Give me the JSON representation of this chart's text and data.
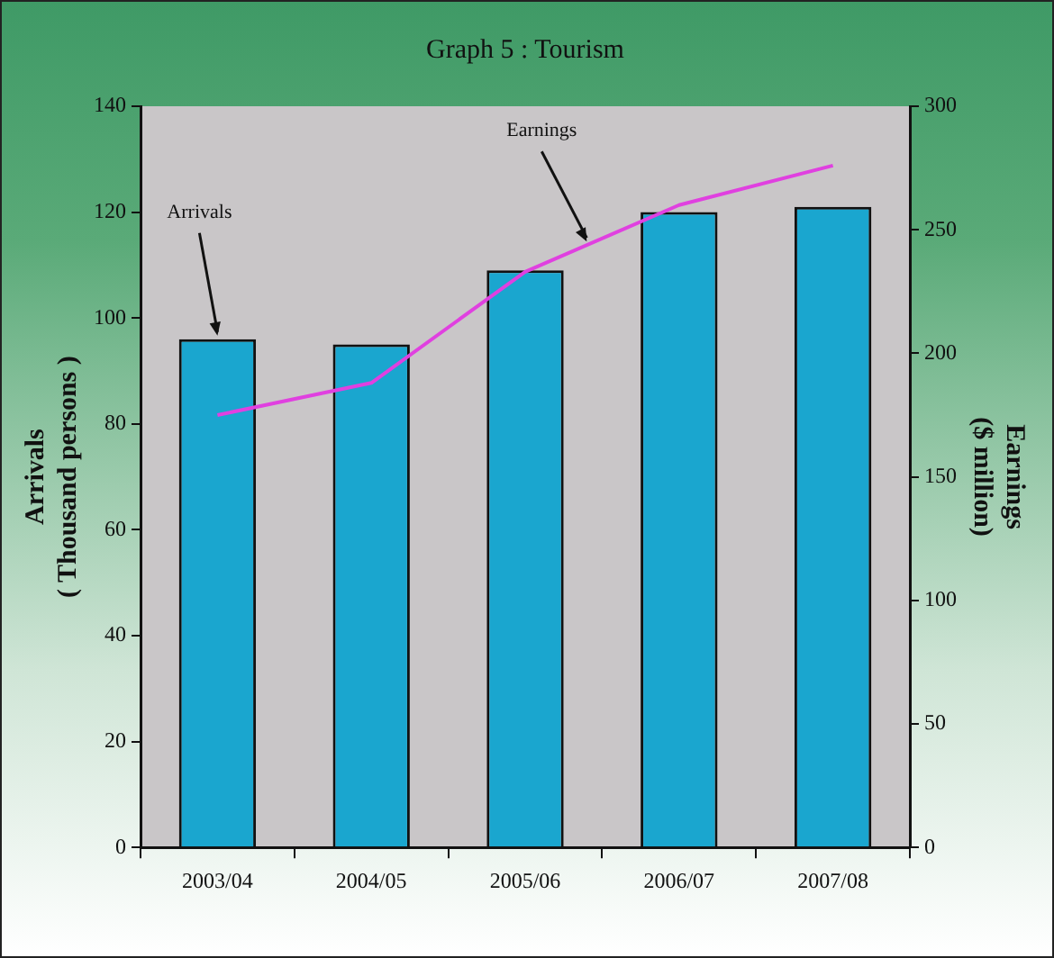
{
  "chart_data": {
    "type": "bar",
    "title": "Graph 5 : Tourism",
    "ylabel": "Arrivals\n( Thousand persons )",
    "y2label": "Earnings\n($ million)",
    "categories": [
      "2003/04",
      "2004/05",
      "2005/06",
      "2006/07",
      "2007/08"
    ],
    "series": [
      {
        "name": "Arrivals",
        "color": "#1aa6cf",
        "values": [
          96,
          95,
          109,
          120,
          121
        ]
      },
      {
        "name": "Earnings",
        "type": "line",
        "axis": "y2",
        "color": "#e040e0",
        "values": [
          175,
          188,
          233,
          260,
          276
        ]
      }
    ],
    "ylim": [
      0,
      140
    ],
    "yticks": [
      0,
      20,
      40,
      60,
      80,
      100,
      120,
      140
    ],
    "y2lim": [
      0,
      300
    ],
    "y2ticks": [
      0,
      50,
      100,
      150,
      200,
      250,
      300
    ],
    "grid": false,
    "legend": false,
    "marker": "none"
  }
}
